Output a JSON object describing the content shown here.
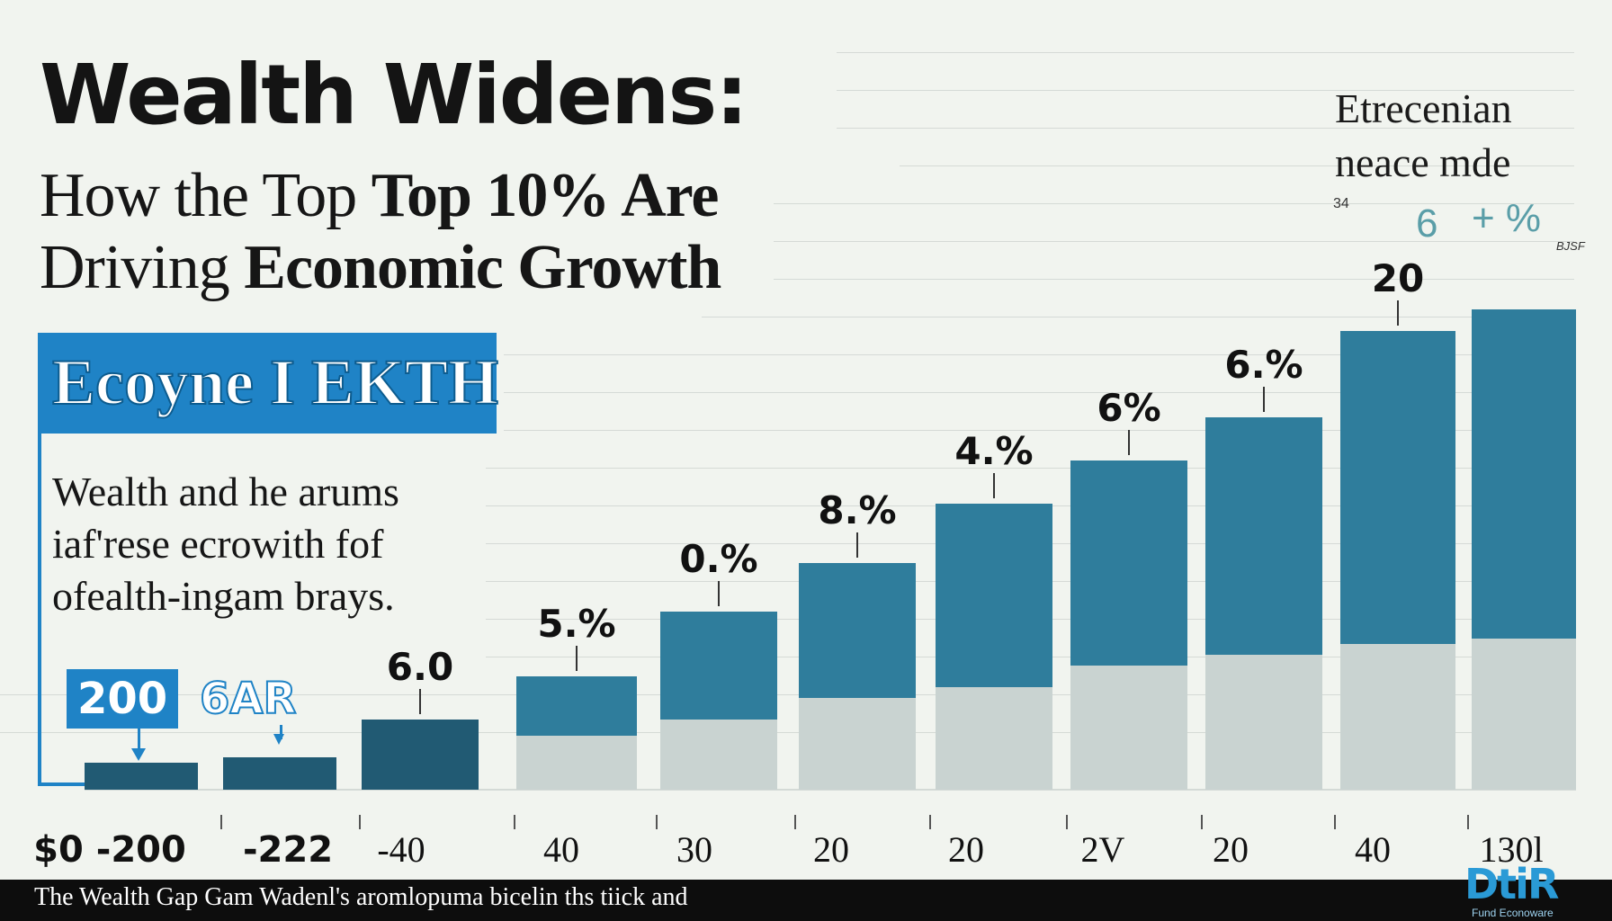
{
  "headline": {
    "title": "Wealth Widens:",
    "subtitle_line1_plain": "How the Top ",
    "subtitle_line1_bold": "Top 10% Are",
    "subtitle_line2_plain": "Driving ",
    "subtitle_line2_bold": "Economic Growth"
  },
  "banner": {
    "label": "Ecoyne I EKTH"
  },
  "body": {
    "line1": "Wealth and he arums",
    "line2": "iaf'rese ecrowith fof",
    "line3": "ofealth-ingam brays."
  },
  "tags": {
    "tag1": "200",
    "tag2": "6AR"
  },
  "legend": {
    "line1": "Etrecenian",
    "line2": "neace mde",
    "small_label": "34",
    "accent1": "6",
    "accent2": "+ %",
    "small_right": "BJSF"
  },
  "footer": {
    "caption": "The Wealth Gap Gam Wadenl's aromlopuma bicelin ths tiick and",
    "logo_word": "DtiR",
    "logo_sub": "Fund Econoware"
  },
  "colors": {
    "top_segment": "#2f7d9c",
    "bottom_segment": "#c9d3d1",
    "dark_bar": "#215a73",
    "accent": "#1f83c6"
  },
  "chart_data": {
    "type": "bar",
    "stacked": true,
    "categories": [
      "$0 -200",
      "-222",
      "-40",
      "40",
      "30",
      "20",
      "20",
      "2V",
      "20",
      "40",
      "130l"
    ],
    "value_labels": [
      "",
      "",
      "6.0",
      "5.%",
      "0.%",
      "8.%",
      "4.%",
      "6%",
      "6.%",
      "20",
      ""
    ],
    "series": [
      {
        "values": [
          0,
          0,
          0,
          10,
          13,
          17,
          19,
          23,
          25,
          27,
          28
        ]
      },
      {
        "values": [
          5,
          6,
          13,
          11,
          20,
          25,
          34,
          38,
          44,
          58,
          61
        ]
      }
    ],
    "ylim": [
      0,
      100
    ],
    "grid": true,
    "legend_position": "top-right"
  }
}
